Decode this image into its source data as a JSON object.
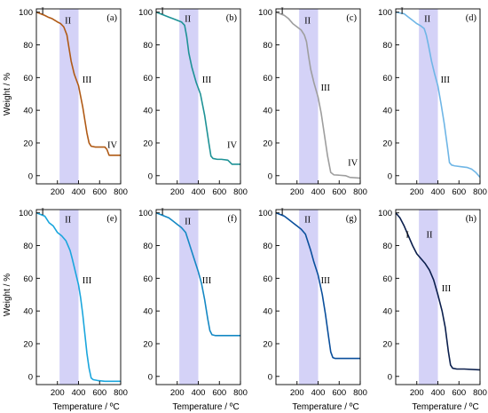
{
  "figure": {
    "y_axis_title": "Weight / %",
    "x_axis_title": "Temperature / ºC"
  },
  "chart_data": [
    {
      "type": "line",
      "panel_label": "(a)",
      "xlim": [
        0,
        800
      ],
      "ylim": [
        -5,
        102
      ],
      "x_ticks": [
        200,
        400,
        600,
        800
      ],
      "y_ticks": [
        0,
        20,
        40,
        60,
        80,
        100
      ],
      "highlight_band": [
        220,
        400
      ],
      "band_color": "#d4d2f7",
      "color": "#b05a15",
      "x": [
        0,
        40,
        80,
        110,
        150,
        200,
        230,
        260,
        290,
        310,
        330,
        360,
        400,
        440,
        460,
        480,
        500,
        520,
        560,
        600,
        650,
        670,
        690,
        720,
        800
      ],
      "y": [
        100,
        99,
        98,
        97,
        96,
        94,
        93,
        91,
        86,
        78,
        70,
        62,
        55,
        42,
        34,
        26,
        20,
        18,
        17.5,
        17.5,
        17.5,
        16,
        12.5,
        12.5,
        12.5
      ],
      "regions": [
        {
          "text": "I",
          "x": 60,
          "y": 99
        },
        {
          "text": "II",
          "x": 300,
          "y": 93
        },
        {
          "text": "III",
          "x": 480,
          "y": 57
        },
        {
          "text": "IV",
          "x": 720,
          "y": 17
        }
      ]
    },
    {
      "type": "line",
      "panel_label": "(b)",
      "xlim": [
        0,
        800
      ],
      "ylim": [
        -5,
        102
      ],
      "x_ticks": [
        200,
        400,
        600,
        800
      ],
      "y_ticks": [
        0,
        20,
        40,
        60,
        80,
        100
      ],
      "highlight_band": [
        220,
        400
      ],
      "band_color": "#d4d2f7",
      "color": "#1e9296",
      "x": [
        0,
        40,
        80,
        120,
        160,
        200,
        240,
        270,
        290,
        310,
        340,
        380,
        420,
        460,
        500,
        520,
        540,
        580,
        620,
        680,
        720,
        800
      ],
      "y": [
        100,
        99,
        98,
        97,
        96,
        95,
        94,
        92,
        85,
        75,
        66,
        57,
        50,
        37,
        20,
        12,
        10.5,
        10,
        10,
        9.5,
        7,
        7
      ],
      "regions": [
        {
          "text": "I",
          "x": 60,
          "y": 99
        },
        {
          "text": "II",
          "x": 300,
          "y": 94
        },
        {
          "text": "III",
          "x": 480,
          "y": 57
        },
        {
          "text": "IV",
          "x": 720,
          "y": 17
        }
      ]
    },
    {
      "type": "line",
      "panel_label": "(c)",
      "xlim": [
        0,
        800
      ],
      "ylim": [
        -5,
        102
      ],
      "x_ticks": [
        200,
        400,
        600,
        800
      ],
      "y_ticks": [
        0,
        20,
        40,
        60,
        80,
        100
      ],
      "highlight_band": [
        220,
        400
      ],
      "band_color": "#d4d2f7",
      "color": "#9e9e9e",
      "x": [
        0,
        40,
        80,
        120,
        160,
        200,
        240,
        270,
        290,
        310,
        330,
        360,
        400,
        430,
        460,
        490,
        520,
        550,
        600,
        660,
        700,
        800
      ],
      "y": [
        100,
        99,
        98,
        96,
        93,
        91,
        89,
        86,
        82,
        73,
        65,
        57,
        48,
        38,
        25,
        12,
        2,
        0.5,
        0.3,
        0,
        -1,
        -1.5
      ],
      "regions": [
        {
          "text": "I",
          "x": 60,
          "y": 99
        },
        {
          "text": "II",
          "x": 300,
          "y": 93
        },
        {
          "text": "III",
          "x": 470,
          "y": 52
        },
        {
          "text": "IV",
          "x": 730,
          "y": 6
        }
      ]
    },
    {
      "type": "line",
      "panel_label": "(d)",
      "xlim": [
        0,
        800
      ],
      "ylim": [
        -5,
        102
      ],
      "x_ticks": [
        200,
        400,
        600,
        800
      ],
      "y_ticks": [
        0,
        20,
        40,
        60,
        80,
        100
      ],
      "highlight_band": [
        220,
        400
      ],
      "band_color": "#d4d2f7",
      "color": "#6fb6e6",
      "x": [
        0,
        40,
        80,
        120,
        160,
        200,
        240,
        270,
        290,
        310,
        340,
        370,
        400,
        430,
        460,
        490,
        510,
        530,
        560,
        620,
        680,
        720,
        760,
        800
      ],
      "y": [
        100,
        99.5,
        99,
        97,
        95,
        93,
        91.5,
        90,
        86,
        80,
        70,
        62,
        55,
        44,
        32,
        18,
        8,
        6.5,
        6,
        5.5,
        5,
        4,
        2,
        -1
      ],
      "regions": [
        {
          "text": "I",
          "x": 60,
          "y": 99
        },
        {
          "text": "II",
          "x": 300,
          "y": 94
        },
        {
          "text": "III",
          "x": 470,
          "y": 57
        }
      ]
    },
    {
      "type": "line",
      "panel_label": "(e)",
      "xlim": [
        0,
        800
      ],
      "ylim": [
        -5,
        102
      ],
      "x_ticks": [
        200,
        400,
        600,
        800
      ],
      "y_ticks": [
        0,
        20,
        40,
        60,
        80,
        100
      ],
      "highlight_band": [
        220,
        400
      ],
      "band_color": "#d4d2f7",
      "color": "#1aa6dd",
      "x": [
        0,
        40,
        80,
        120,
        160,
        200,
        240,
        280,
        320,
        340,
        370,
        400,
        420,
        440,
        460,
        480,
        500,
        520,
        540,
        580,
        650,
        800
      ],
      "y": [
        100,
        99,
        98,
        94,
        92,
        88,
        86,
        83,
        77,
        72,
        64,
        56,
        48,
        38,
        26,
        14,
        5,
        -1,
        -2,
        -2.5,
        -3,
        -3
      ],
      "regions": [
        {
          "text": "I",
          "x": 60,
          "y": 99
        },
        {
          "text": "II",
          "x": 300,
          "y": 94
        },
        {
          "text": "III",
          "x": 480,
          "y": 57
        }
      ]
    },
    {
      "type": "line",
      "panel_label": "(f)",
      "xlim": [
        0,
        800
      ],
      "ylim": [
        -5,
        102
      ],
      "x_ticks": [
        200,
        400,
        600,
        800
      ],
      "y_ticks": [
        0,
        20,
        40,
        60,
        80,
        100
      ],
      "highlight_band": [
        220,
        400
      ],
      "band_color": "#d4d2f7",
      "color": "#1488c4",
      "x": [
        0,
        40,
        80,
        120,
        160,
        200,
        240,
        280,
        300,
        330,
        360,
        400,
        430,
        460,
        490,
        510,
        530,
        560,
        620,
        700,
        800
      ],
      "y": [
        100,
        99,
        98,
        97,
        95,
        93,
        91,
        88,
        84,
        78,
        72,
        64,
        57,
        47,
        35,
        28,
        25.5,
        25,
        25,
        25,
        25
      ],
      "regions": [
        {
          "text": "I",
          "x": 60,
          "y": 99
        },
        {
          "text": "II",
          "x": 300,
          "y": 93
        },
        {
          "text": "III",
          "x": 480,
          "y": 57
        }
      ]
    },
    {
      "type": "line",
      "panel_label": "(g)",
      "xlim": [
        0,
        800
      ],
      "ylim": [
        -5,
        102
      ],
      "x_ticks": [
        200,
        400,
        600,
        800
      ],
      "y_ticks": [
        0,
        20,
        40,
        60,
        80,
        100
      ],
      "highlight_band": [
        220,
        400
      ],
      "band_color": "#d4d2f7",
      "color": "#0a4f9c",
      "x": [
        0,
        40,
        80,
        120,
        160,
        200,
        240,
        280,
        300,
        330,
        360,
        400,
        440,
        470,
        500,
        520,
        540,
        560,
        600,
        700,
        800
      ],
      "y": [
        100,
        99,
        98,
        96,
        94,
        92,
        90,
        87,
        83,
        77,
        70,
        62,
        50,
        38,
        24,
        15,
        11.5,
        11,
        11,
        11,
        11
      ],
      "regions": [
        {
          "text": "I",
          "x": 60,
          "y": 99
        },
        {
          "text": "II",
          "x": 300,
          "y": 94
        },
        {
          "text": "III",
          "x": 470,
          "y": 57
        }
      ]
    },
    {
      "type": "line",
      "panel_label": "(h)",
      "xlim": [
        0,
        800
      ],
      "ylim": [
        -5,
        102
      ],
      "x_ticks": [
        200,
        400,
        600,
        800
      ],
      "y_ticks": [
        0,
        20,
        40,
        60,
        80,
        100
      ],
      "highlight_band": [
        220,
        400
      ],
      "band_color": "#d4d2f7",
      "color": "#0b1f4d",
      "x": [
        0,
        40,
        80,
        120,
        160,
        200,
        240,
        280,
        320,
        360,
        400,
        440,
        470,
        500,
        520,
        540,
        580,
        650,
        800
      ],
      "y": [
        100,
        97,
        92,
        86,
        80,
        75,
        72,
        69,
        65,
        59,
        50,
        40,
        30,
        15,
        7,
        5,
        4.5,
        4.5,
        4
      ],
      "regions": [
        {
          "text": "I",
          "x": 110,
          "y": 85
        },
        {
          "text": "II",
          "x": 320,
          "y": 85
        },
        {
          "text": "III",
          "x": 480,
          "y": 52
        }
      ]
    }
  ]
}
